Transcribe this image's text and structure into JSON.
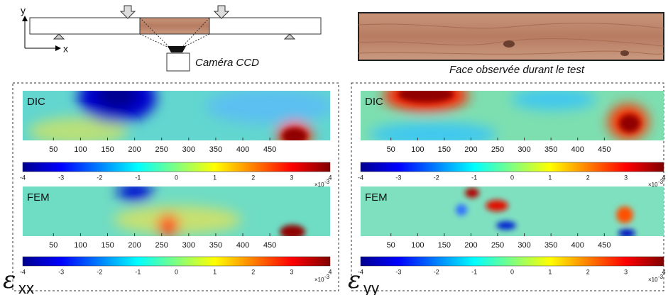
{
  "setup": {
    "axis_y": "y",
    "axis_x": "x",
    "camera_label": "Caméra CCD",
    "wood_caption": "Face observée durant le test"
  },
  "panels": [
    {
      "symbol": "ε",
      "subscript": "xx",
      "maps": [
        {
          "label": "DIC"
        },
        {
          "label": "FEM"
        }
      ]
    },
    {
      "symbol": "ε",
      "subscript": "yy",
      "maps": [
        {
          "label": "DIC"
        },
        {
          "label": "FEM"
        }
      ]
    }
  ],
  "x_ticks": [
    50,
    100,
    150,
    200,
    250,
    300,
    350,
    400,
    450
  ],
  "colorbar_ticks": [
    -4,
    -3,
    -2,
    -1,
    0,
    1,
    2,
    3,
    4
  ],
  "colorbar_multiplier": "×10",
  "colorbar_exponent": "-3"
}
